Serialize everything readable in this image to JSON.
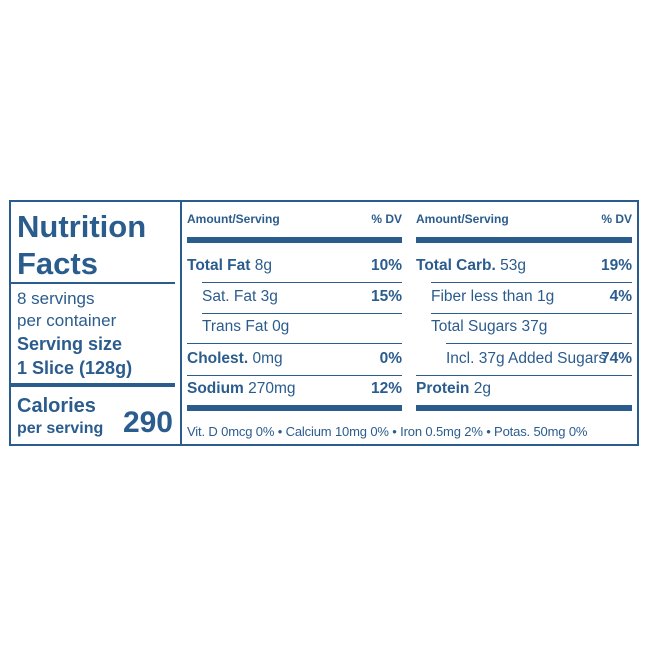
{
  "left": {
    "title_line1": "Nutrition",
    "title_line2": "Facts",
    "servings_line1": "8 servings",
    "servings_line2": "per container",
    "serving_size_label": "Serving size",
    "serving_size_value": "1 Slice (128g)",
    "calories_label_line1": "Calories",
    "calories_label_line2": "per serving",
    "calories_value": "290"
  },
  "columns": [
    {
      "header_amount": "Amount/Serving",
      "header_dv": "% DV",
      "rows": [
        {
          "name": "Total Fat",
          "amount": "8g",
          "dv": "10%",
          "bold": true,
          "indent": 0
        },
        {
          "name": "Sat. Fat",
          "amount": "3g",
          "dv": "15%",
          "bold": false,
          "indent": 1
        },
        {
          "name": "Trans Fat",
          "amount": "0g",
          "bold": false,
          "indent": 1
        },
        {
          "name": "Cholest.",
          "amount": "0mg",
          "dv": "0%",
          "bold": true,
          "indent": 0
        },
        {
          "name": "Sodium",
          "amount": "270mg",
          "dv": "12%",
          "bold": true,
          "indent": 0
        }
      ]
    },
    {
      "header_amount": "Amount/Serving",
      "header_dv": "% DV",
      "rows": [
        {
          "name": "Total Carb.",
          "amount": "53g",
          "dv": "19%",
          "bold": true,
          "indent": 0
        },
        {
          "name": "Fiber less than",
          "amount": "1g",
          "dv": "4%",
          "bold": false,
          "indent": 1
        },
        {
          "name": "Total Sugars",
          "amount": "37g",
          "bold": false,
          "indent": 1
        },
        {
          "name": "Incl. 37g Added Sugars",
          "dv": "74%",
          "bold": false,
          "indent": 2
        },
        {
          "name": "Protein",
          "amount": "2g",
          "bold": true,
          "indent": 0
        }
      ]
    }
  ],
  "footer": "Vit. D 0mcg 0% • Calcium 10mg 0% • Iron 0.5mg 2% • Potas. 50mg 0%"
}
